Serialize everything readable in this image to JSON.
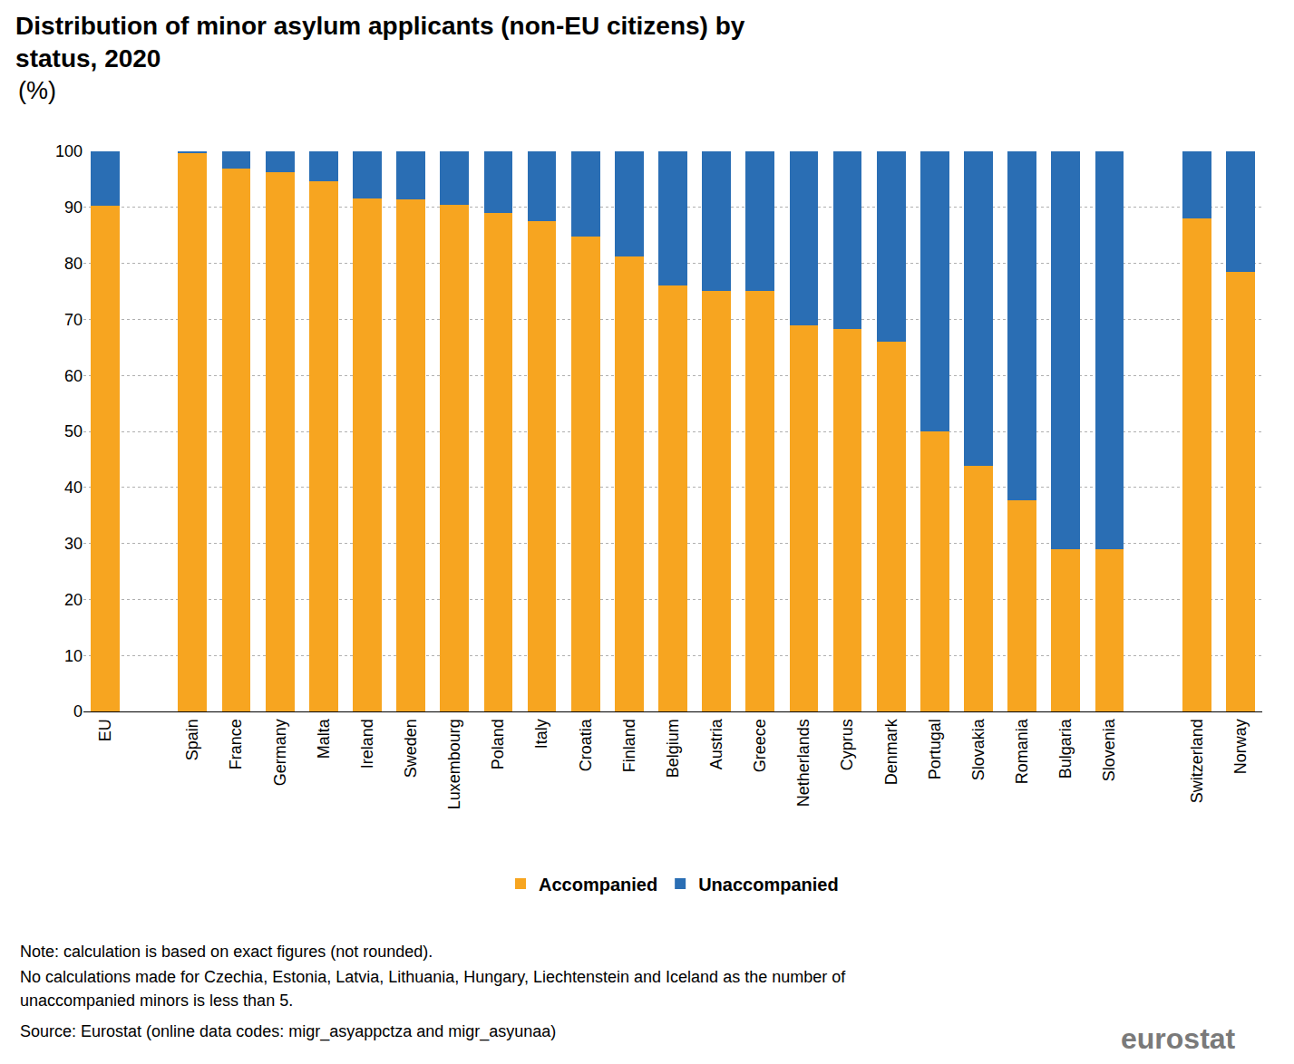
{
  "chart_data": {
    "type": "bar",
    "stacked": true,
    "title": "Distribution of minor asylum applicants (non-EU citizens) by status, 2020",
    "subtitle": "(%)",
    "categories": [
      "EU",
      null,
      "Spain",
      "France",
      "Germany",
      "Malta",
      "Ireland",
      "Sweden",
      "Luxembourg",
      "Poland",
      "Italy",
      "Croatia",
      "Finland",
      "Belgium",
      "Austria",
      "Greece",
      "Netherlands",
      "Cyprus",
      "Denmark",
      "Portugal",
      "Slovakia",
      "Romania",
      "Bulgaria",
      "Slovenia",
      null,
      "Switzerland",
      "Norway"
    ],
    "series": [
      {
        "name": "Accompanied",
        "color": "#f7a520",
        "values": [
          90.3,
          null,
          99.6,
          96.9,
          96.2,
          94.6,
          91.6,
          91.4,
          90.5,
          89,
          87.5,
          84.8,
          81.3,
          76,
          75.1,
          75.1,
          68.9,
          68.3,
          66,
          50,
          43.8,
          37.7,
          29,
          29,
          null,
          88,
          78.4
        ]
      },
      {
        "name": "Unaccompanied",
        "color": "#2a6eb4",
        "values": [
          9.7,
          null,
          0.4,
          3.1,
          3.8,
          5.4,
          8.4,
          8.6,
          9.5,
          11,
          12.5,
          15.2,
          18.7,
          24,
          24.9,
          24.9,
          31.1,
          31.7,
          34,
          50,
          56.2,
          62.3,
          71,
          71,
          null,
          12,
          21.6
        ]
      }
    ],
    "ylim": [
      0,
      100
    ],
    "yticks": [
      0,
      10,
      20,
      30,
      40,
      50,
      60,
      70,
      80,
      90,
      100
    ],
    "grid": true,
    "legend": "bottom",
    "notes": [
      "Note: calculation is based on exact figures (not rounded).",
      "No calculations made for Czechia, Estonia, Latvia, Lithuania, Hungary, Liechtenstein and Iceland as the number of",
      "unaccompanied minors is less than 5."
    ],
    "source": "Source: Eurostat (online data codes: migr_asyappctza and migr_asyunaa)",
    "logo": "eurostat"
  }
}
